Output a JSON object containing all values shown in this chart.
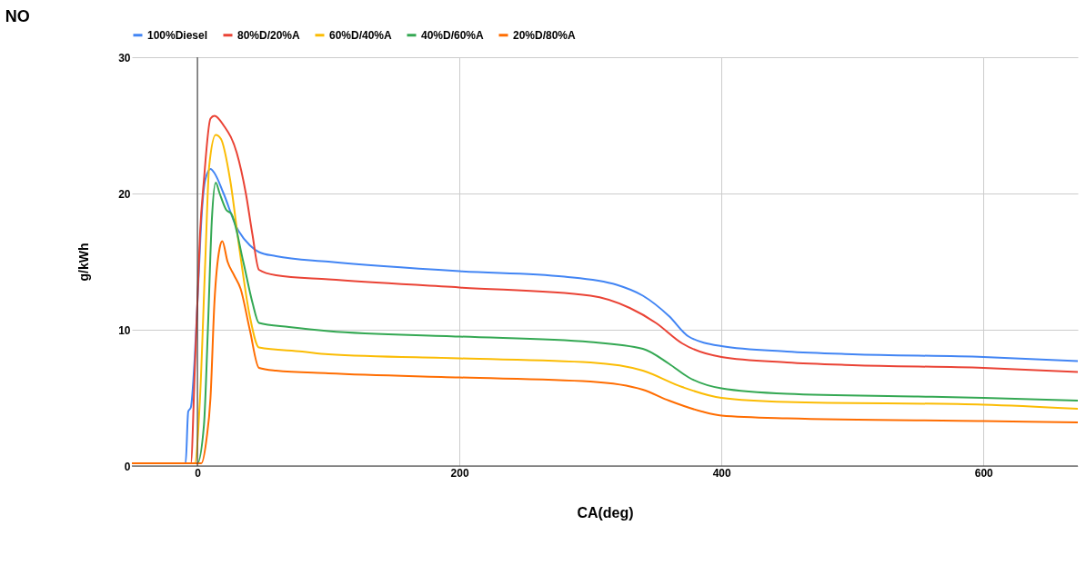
{
  "chart_data": {
    "type": "line",
    "title": "NO",
    "xlabel": "CA(deg)",
    "ylabel": "g/kWh",
    "xlim": [
      -50,
      672
    ],
    "ylim": [
      0,
      30
    ],
    "xticks": [
      0,
      200,
      400,
      600
    ],
    "yticks": [
      0,
      10,
      20,
      30
    ],
    "grid": true,
    "legend": "top",
    "marker": "none",
    "line_style": "solid",
    "ref_lines": [
      {
        "axis": "x",
        "value": 0,
        "color": "#333333"
      }
    ],
    "series": [
      {
        "name": "100%Diesel",
        "color": "#4285f4",
        "x": [
          -50,
          -9,
          -7,
          -5,
          -2,
          1,
          3,
          6,
          10,
          13,
          20,
          30,
          40,
          47,
          60,
          100,
          200,
          280,
          320,
          340,
          360,
          375,
          400,
          450,
          500,
          600,
          672
        ],
        "values": [
          0.2,
          0.2,
          4,
          4.3,
          8,
          14,
          18,
          21,
          21.8,
          21.5,
          20,
          17.5,
          16.2,
          15.7,
          15.4,
          15,
          14.3,
          13.9,
          13.3,
          12.5,
          11,
          9.5,
          8.8,
          8.4,
          8.2,
          8,
          7.7
        ]
      },
      {
        "name": "80%D/20%A",
        "color": "#ea4335",
        "x": [
          -50,
          -5,
          -2,
          0,
          2,
          5,
          10,
          13,
          20,
          30,
          37,
          42,
          47,
          60,
          100,
          200,
          300,
          330,
          350,
          370,
          400,
          450,
          500,
          600,
          672
        ],
        "values": [
          0.2,
          0.2,
          7,
          12,
          17,
          21,
          25.5,
          25.7,
          25,
          23,
          20,
          17,
          14.4,
          14,
          13.7,
          13.1,
          12.5,
          11.6,
          10.5,
          9,
          8,
          7.6,
          7.4,
          7.2,
          6.9
        ]
      },
      {
        "name": "60%D/40%A",
        "color": "#fbbc04",
        "x": [
          -50,
          -2,
          2,
          6,
          9,
          14,
          18,
          25,
          32,
          40,
          47,
          80,
          100,
          200,
          300,
          340,
          370,
          400,
          450,
          600,
          672
        ],
        "values": [
          0.2,
          0.2,
          5,
          15,
          22,
          24.3,
          24,
          21,
          16,
          11,
          8.7,
          8.4,
          8.2,
          7.9,
          7.6,
          7,
          5.8,
          5,
          4.7,
          4.5,
          4.2
        ]
      },
      {
        "name": "40%D/60%A",
        "color": "#34a853",
        "x": [
          -50,
          0,
          5,
          8,
          11,
          14,
          17,
          22,
          26,
          35,
          42,
          47,
          70,
          100,
          200,
          300,
          340,
          360,
          375,
          400,
          450,
          550,
          600,
          672
        ],
        "values": [
          0.2,
          0.2,
          3,
          10,
          18,
          20.8,
          20,
          18.8,
          18.5,
          15,
          12,
          10.5,
          10.2,
          9.9,
          9.5,
          9.1,
          8.6,
          7.5,
          6.5,
          5.7,
          5.3,
          5.1,
          5,
          4.8
        ]
      },
      {
        "name": "20%D/80%A",
        "color": "#ff6d01",
        "x": [
          -50,
          3,
          7,
          10,
          13,
          17,
          19,
          23,
          28,
          33,
          40,
          47,
          60,
          100,
          200,
          300,
          340,
          360,
          385,
          400,
          450,
          600,
          672
        ],
        "values": [
          0.2,
          0.2,
          2,
          5,
          12,
          16,
          16.5,
          15,
          14,
          13,
          10,
          7.2,
          7,
          6.8,
          6.5,
          6.2,
          5.6,
          4.8,
          4,
          3.7,
          3.5,
          3.3,
          3.2
        ]
      }
    ]
  }
}
